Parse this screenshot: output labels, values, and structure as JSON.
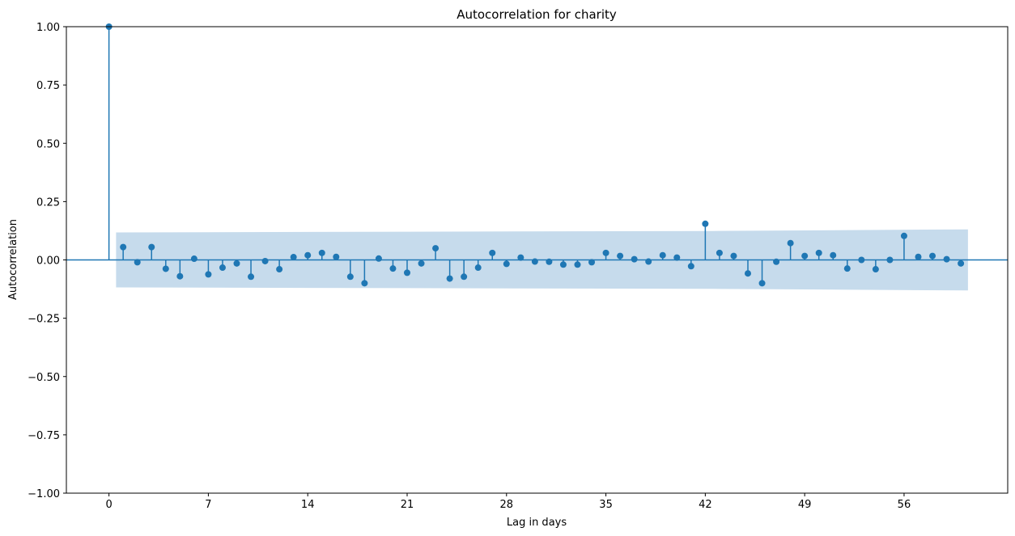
{
  "chart_data": {
    "type": "stem",
    "title": "Autocorrelation for charity",
    "xlabel": "Lag in days",
    "ylabel": "Autocorrelation",
    "xlim": [
      -3,
      63.3
    ],
    "ylim": [
      -1.0,
      1.0
    ],
    "xticks": [
      0,
      7,
      14,
      21,
      28,
      35,
      42,
      49,
      56
    ],
    "yticks": [
      1.0,
      0.75,
      0.5,
      0.25,
      0.0,
      -0.25,
      -0.5,
      -0.75,
      -1.0
    ],
    "ytick_labels": [
      "1.00",
      "0.75",
      "0.50",
      "0.25",
      "0.00",
      "−0.25",
      "−0.50",
      "−0.75",
      "−1.00"
    ],
    "xtick_labels": [
      "0",
      "7",
      "14",
      "21",
      "28",
      "35",
      "42",
      "49",
      "56"
    ],
    "series": [
      {
        "lags": [
          0,
          1,
          2,
          3,
          4,
          5,
          6,
          7,
          8,
          9,
          10,
          11,
          12,
          13,
          14,
          15,
          16,
          17,
          18,
          19,
          20,
          21,
          22,
          23,
          24,
          25,
          26,
          27,
          28,
          29,
          30,
          31,
          32,
          33,
          34,
          35,
          36,
          37,
          38,
          39,
          40,
          41,
          42,
          43,
          44,
          45,
          46,
          47,
          48,
          49,
          50,
          51,
          52,
          53,
          54,
          55,
          56,
          57,
          58,
          59,
          60
        ],
        "values": [
          1.0,
          0.055,
          -0.01,
          0.055,
          -0.038,
          -0.07,
          0.005,
          -0.062,
          -0.033,
          -0.015,
          -0.072,
          -0.005,
          -0.04,
          0.012,
          0.02,
          0.03,
          0.013,
          -0.072,
          -0.1,
          0.006,
          -0.037,
          -0.055,
          -0.015,
          0.05,
          -0.08,
          -0.072,
          -0.033,
          0.03,
          -0.017,
          0.01,
          -0.007,
          -0.008,
          -0.02,
          -0.02,
          -0.01,
          0.03,
          0.017,
          0.003,
          -0.007,
          0.02,
          0.01,
          -0.027,
          0.155,
          0.03,
          0.017,
          -0.058,
          -0.1,
          -0.008,
          0.072,
          0.017,
          0.03,
          0.02,
          -0.037,
          0.0,
          -0.04,
          0.0,
          0.103,
          0.013,
          0.017,
          0.003,
          -0.015
        ]
      }
    ],
    "confidence_band": {
      "lags": [
        0.5,
        42.5,
        60.5
      ],
      "upper": [
        0.118,
        0.124,
        0.131
      ],
      "lower": [
        -0.118,
        -0.124,
        -0.131
      ]
    },
    "colors": {
      "stem": "#1f77b4",
      "band": "#c6dbec",
      "baseline": "#1f77b4"
    },
    "grid": false
  }
}
